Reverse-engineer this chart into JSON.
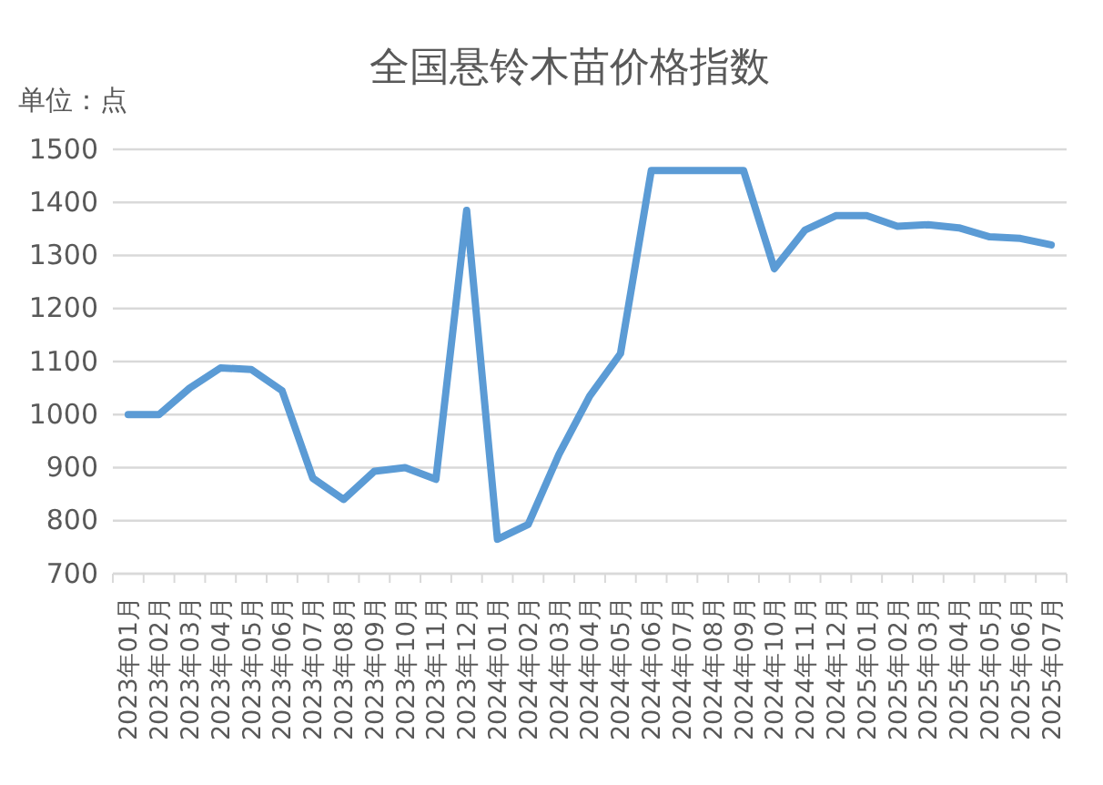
{
  "chart_data": {
    "type": "line",
    "title": "全国悬铃木苗价格指数",
    "ylabel": "单位：点",
    "categories": [
      "2023年01月",
      "2023年02月",
      "2023年03月",
      "2023年04月",
      "2023年05月",
      "2023年06月",
      "2023年07月",
      "2023年08月",
      "2023年09月",
      "2023年10月",
      "2023年11月",
      "2023年12月",
      "2024年01月",
      "2024年02月",
      "2024年03月",
      "2024年04月",
      "2024年05月",
      "2024年06月",
      "2024年07月",
      "2024年08月",
      "2024年09月",
      "2024年10月",
      "2024年11月",
      "2024年12月",
      "2025年01月",
      "2025年02月",
      "2025年03月",
      "2025年04月",
      "2025年05月",
      "2025年06月",
      "2025年07月"
    ],
    "series": [
      {
        "color": "#5b9bd5",
        "values": [
          1000,
          1000,
          1050,
          1088,
          1085,
          1045,
          880,
          840,
          893,
          900,
          878,
          1385,
          765,
          793,
          925,
          1035,
          1115,
          1460,
          1460,
          1460,
          1460,
          1275,
          1348,
          1375,
          1375,
          1355,
          1358,
          1352,
          1335,
          1332,
          1320
        ]
      }
    ],
    "ylim": [
      700,
      1500
    ],
    "yticks": [
      700,
      800,
      900,
      1000,
      1100,
      1200,
      1300,
      1400,
      1500
    ],
    "grid": "y",
    "marker": "none",
    "line_style": "solid"
  }
}
